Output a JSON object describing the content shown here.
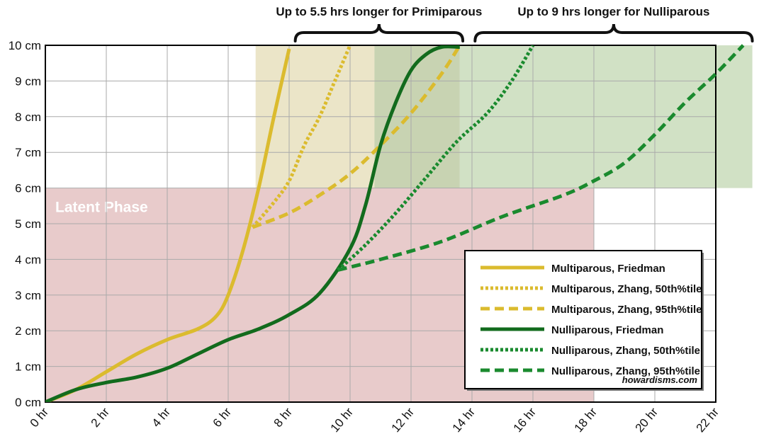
{
  "chart_data": {
    "type": "line",
    "title": "",
    "xlabel": "",
    "ylabel": "",
    "xlim": [
      0,
      22.9
    ],
    "ylim": [
      0,
      10
    ],
    "x_ticks": [
      "0 hr",
      "2 hr",
      "4 hr",
      "6 hr",
      "8 hr",
      "10 hr",
      "12 hr",
      "14 hr",
      "16 hr",
      "18 hr",
      "20 hr",
      "22 hr"
    ],
    "y_ticks": [
      "0 cm",
      "1 cm",
      "2 cm",
      "3 cm",
      "4 cm",
      "5 cm",
      "6 cm",
      "7 cm",
      "8 cm",
      "9 cm",
      "10 cm"
    ],
    "grid": true,
    "legend_position": "bottom-right",
    "regions": [
      {
        "label": "Latent Phase",
        "x": [
          0,
          18
        ],
        "y": [
          0,
          6
        ],
        "color": "#d9a9a9"
      },
      {
        "label": "",
        "x": [
          6.9,
          10.8
        ],
        "y": [
          6,
          10
        ],
        "color": "#ddd4a4"
      },
      {
        "label": "",
        "x": [
          10.8,
          13.6
        ],
        "y": [
          6,
          10
        ],
        "color": "#a4b67e"
      },
      {
        "label": "",
        "x": [
          13.6,
          23.2
        ],
        "y": [
          6,
          10
        ],
        "color": "#b3cd9f"
      }
    ],
    "annotations": [
      {
        "text": "Up to 5.5 hrs longer for Primiparous",
        "x_range": [
          8.2,
          13.7
        ]
      },
      {
        "text": "Up to 9 hrs longer for Nulliparous",
        "x_range": [
          14.1,
          23.2
        ]
      }
    ],
    "series": [
      {
        "name": "Multiparous, Friedman",
        "color": "#dbbb2e",
        "style": "solid",
        "points": [
          [
            0,
            0
          ],
          [
            1,
            0.35
          ],
          [
            2,
            0.85
          ],
          [
            3,
            1.35
          ],
          [
            4,
            1.75
          ],
          [
            5,
            2.05
          ],
          [
            5.6,
            2.4
          ],
          [
            6,
            3.0
          ],
          [
            6.5,
            4.3
          ],
          [
            7,
            6.0
          ],
          [
            7.5,
            8.0
          ],
          [
            8,
            9.9
          ]
        ]
      },
      {
        "name": "Multiparous, Zhang, 50th%tile",
        "color": "#dbbb2e",
        "style": "dotted",
        "points": [
          [
            6.8,
            4.9
          ],
          [
            7.5,
            5.6
          ],
          [
            8,
            6.2
          ],
          [
            8.5,
            7.2
          ],
          [
            9,
            8.0
          ],
          [
            9.5,
            9.0
          ],
          [
            10,
            10.0
          ]
        ]
      },
      {
        "name": "Multiparous, Zhang, 95th%tile",
        "color": "#dbbb2e",
        "style": "dashed",
        "points": [
          [
            6.8,
            4.9
          ],
          [
            8,
            5.3
          ],
          [
            9,
            5.8
          ],
          [
            10,
            6.4
          ],
          [
            11,
            7.2
          ],
          [
            12,
            8.1
          ],
          [
            13,
            9.2
          ],
          [
            13.6,
            10.0
          ]
        ]
      },
      {
        "name": "Nulliparous, Friedman",
        "color": "#126b1d",
        "style": "solid",
        "points": [
          [
            0,
            0
          ],
          [
            1,
            0.35
          ],
          [
            2,
            0.55
          ],
          [
            3,
            0.7
          ],
          [
            4,
            0.95
          ],
          [
            5,
            1.35
          ],
          [
            6,
            1.75
          ],
          [
            7,
            2.05
          ],
          [
            8,
            2.45
          ],
          [
            9,
            3.05
          ],
          [
            10,
            4.3
          ],
          [
            10.5,
            5.5
          ],
          [
            11,
            7.2
          ],
          [
            11.5,
            8.4
          ],
          [
            12,
            9.3
          ],
          [
            12.5,
            9.75
          ],
          [
            13,
            9.95
          ],
          [
            13.6,
            9.95
          ]
        ]
      },
      {
        "name": "Nulliparous, Zhang, 50th%tile",
        "color": "#1a8a2e",
        "style": "dotted",
        "points": [
          [
            9.6,
            3.7
          ],
          [
            10.5,
            4.4
          ],
          [
            11.5,
            5.3
          ],
          [
            12.5,
            6.3
          ],
          [
            13.5,
            7.3
          ],
          [
            14.5,
            8.1
          ],
          [
            15.3,
            9.0
          ],
          [
            16,
            10.0
          ]
        ]
      },
      {
        "name": "Nulliparous, Zhang, 95th%tile",
        "color": "#1a8a2e",
        "style": "dashed",
        "points": [
          [
            9.6,
            3.7
          ],
          [
            11,
            4.0
          ],
          [
            13,
            4.5
          ],
          [
            15,
            5.2
          ],
          [
            17,
            5.8
          ],
          [
            18,
            6.2
          ],
          [
            19,
            6.7
          ],
          [
            20,
            7.5
          ],
          [
            21,
            8.4
          ],
          [
            22,
            9.2
          ],
          [
            22.9,
            10.0
          ]
        ]
      }
    ]
  },
  "legend_credit": "howardisms.com"
}
